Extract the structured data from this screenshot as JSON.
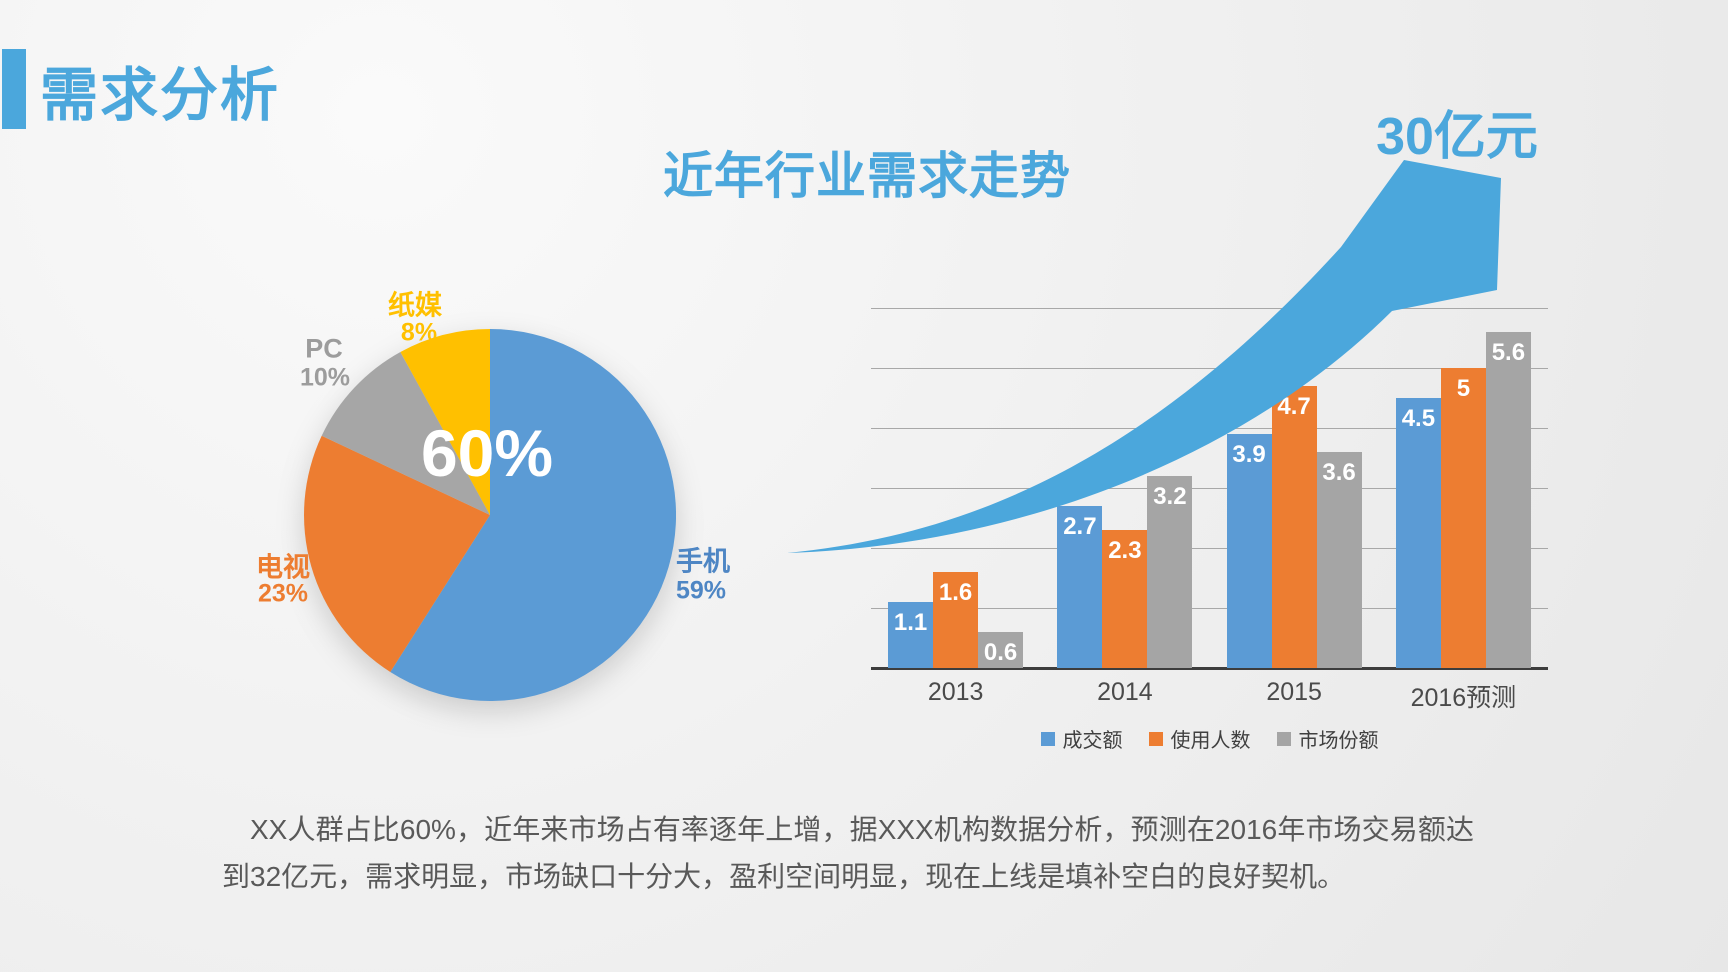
{
  "slide": {
    "title": "需求分析",
    "subtitle": "近年行业需求走势",
    "arrow_label": "30亿元",
    "paragraph": "XX人群占比60%，近年来市场占有率逐年上增，据XXX机构数据分析，预测在2016年市场交易额达到32亿元，需求明显，市场缺口十分大，盈利空间明显，现在上线是填补空白的良好契机。"
  },
  "colors": {
    "accent_blue": "#4BA7DC",
    "series_blue": "#5B9BD5",
    "series_orange": "#ED7D31",
    "series_gray": "#A5A5A5",
    "series_yellow": "#FFC000",
    "text_gray": "#595959",
    "gridline": "#A8A8A8",
    "axis": "#3D3D3D"
  },
  "chart_data": [
    {
      "type": "pie",
      "title": "",
      "center_label": "60%",
      "start": "top",
      "direction": "clockwise",
      "slices": [
        {
          "label": "手机",
          "value": 59,
          "display": "59%",
          "color": "#5B9BD5",
          "label_color": "#4E86C4"
        },
        {
          "label": "电视",
          "value": 23,
          "display": "23%",
          "color": "#ED7D31",
          "label_color": "#ED7D31"
        },
        {
          "label": "PC",
          "value": 10,
          "display": "10%",
          "color": "#A6A6A6",
          "label_color": "#9C9C9C"
        },
        {
          "label": "纸媒",
          "value": 8,
          "display": "8%",
          "color": "#FFC000",
          "label_color": "#FFC000"
        }
      ]
    },
    {
      "type": "bar",
      "categories": [
        "2013",
        "2014",
        "2015",
        "2016预测"
      ],
      "series": [
        {
          "name": "成交额",
          "color": "#5B9BD5",
          "values": [
            1.1,
            2.7,
            3.9,
            4.5
          ]
        },
        {
          "name": "使用人数",
          "color": "#ED7D31",
          "values": [
            1.6,
            2.3,
            4.7,
            5
          ]
        },
        {
          "name": "市场份额",
          "color": "#A5A5A5",
          "values": [
            0.6,
            3.2,
            3.6,
            5.6
          ]
        }
      ],
      "ylim": [
        0,
        6
      ],
      "gridline_step": 1,
      "grid": true,
      "legend_position": "bottom",
      "value_labels": true
    }
  ]
}
